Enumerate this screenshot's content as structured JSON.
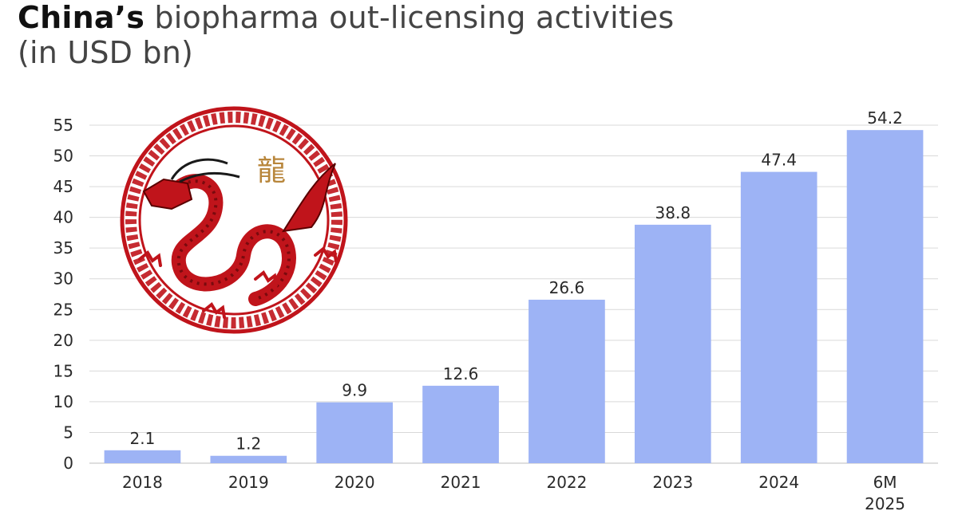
{
  "header": {
    "title_bold": "China’s",
    "title_rest": "biopharma out-licensing activities",
    "subtitle": "(in USD bn)"
  },
  "colors": {
    "bar": "#9db3f5",
    "grid": "#d9d9d9",
    "axis_text": "#2a2a2a",
    "emblem_red": "#c0141b",
    "emblem_gold": "#b8863b"
  },
  "emblem": {
    "character": "龍",
    "icon": "dragon-emblem-icon"
  },
  "chart_data": {
    "type": "bar",
    "title": "China’s biopharma out-licensing activities (in USD bn)",
    "categories": [
      "2018",
      "2019",
      "2020",
      "2021",
      "2022",
      "2023",
      "2024",
      "6M 2025"
    ],
    "values": [
      2.1,
      1.2,
      9.9,
      12.6,
      26.6,
      38.8,
      47.4,
      54.2
    ],
    "value_labels": [
      "2.1",
      "1.2",
      "9.9",
      "12.6",
      "26.6",
      "38.8",
      "47.4",
      "54.2"
    ],
    "yticks": [
      0,
      5,
      10,
      15,
      20,
      25,
      30,
      35,
      40,
      45,
      50,
      55
    ],
    "ylim": [
      0,
      55
    ],
    "xlabel": "",
    "ylabel": "",
    "grid": true,
    "legend": "none"
  }
}
